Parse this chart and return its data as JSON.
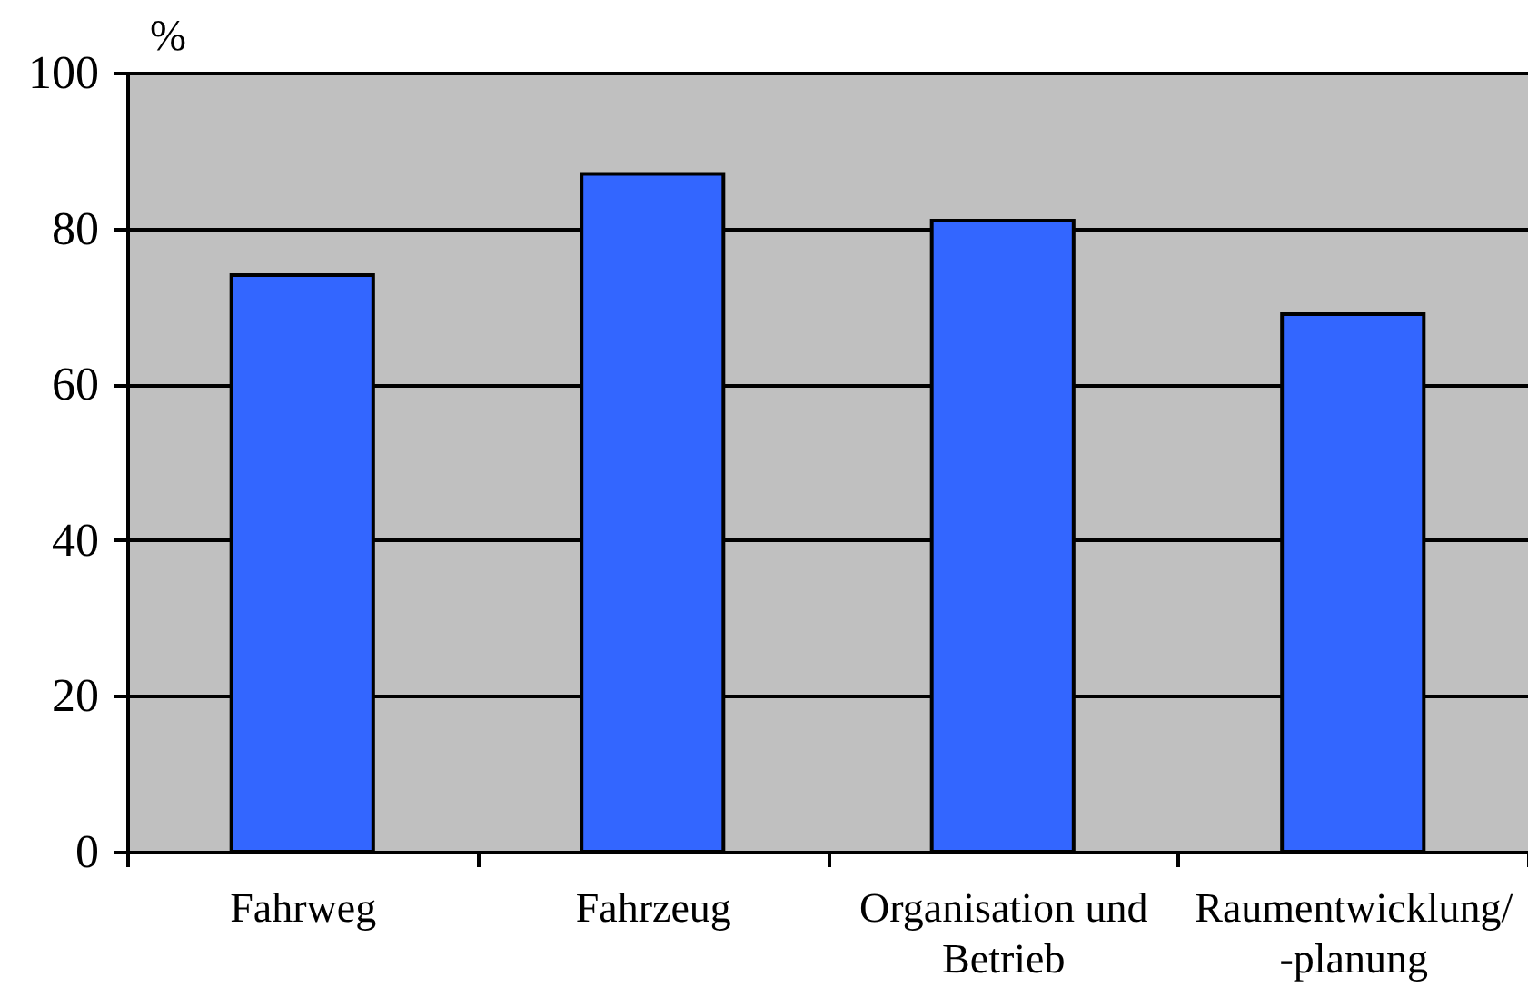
{
  "chart_data": {
    "type": "bar",
    "ylabel": "%",
    "categories": [
      "Fahrweg",
      "Fahrzeug",
      "Organisation und Betrieb",
      "Raumentwicklung/ -planung"
    ],
    "values": [
      74,
      87,
      81,
      69
    ],
    "color": "#3366ff",
    "ylim": [
      0,
      100
    ],
    "yticks": [
      0,
      20,
      40,
      60,
      80,
      100
    ],
    "grid": "y"
  }
}
